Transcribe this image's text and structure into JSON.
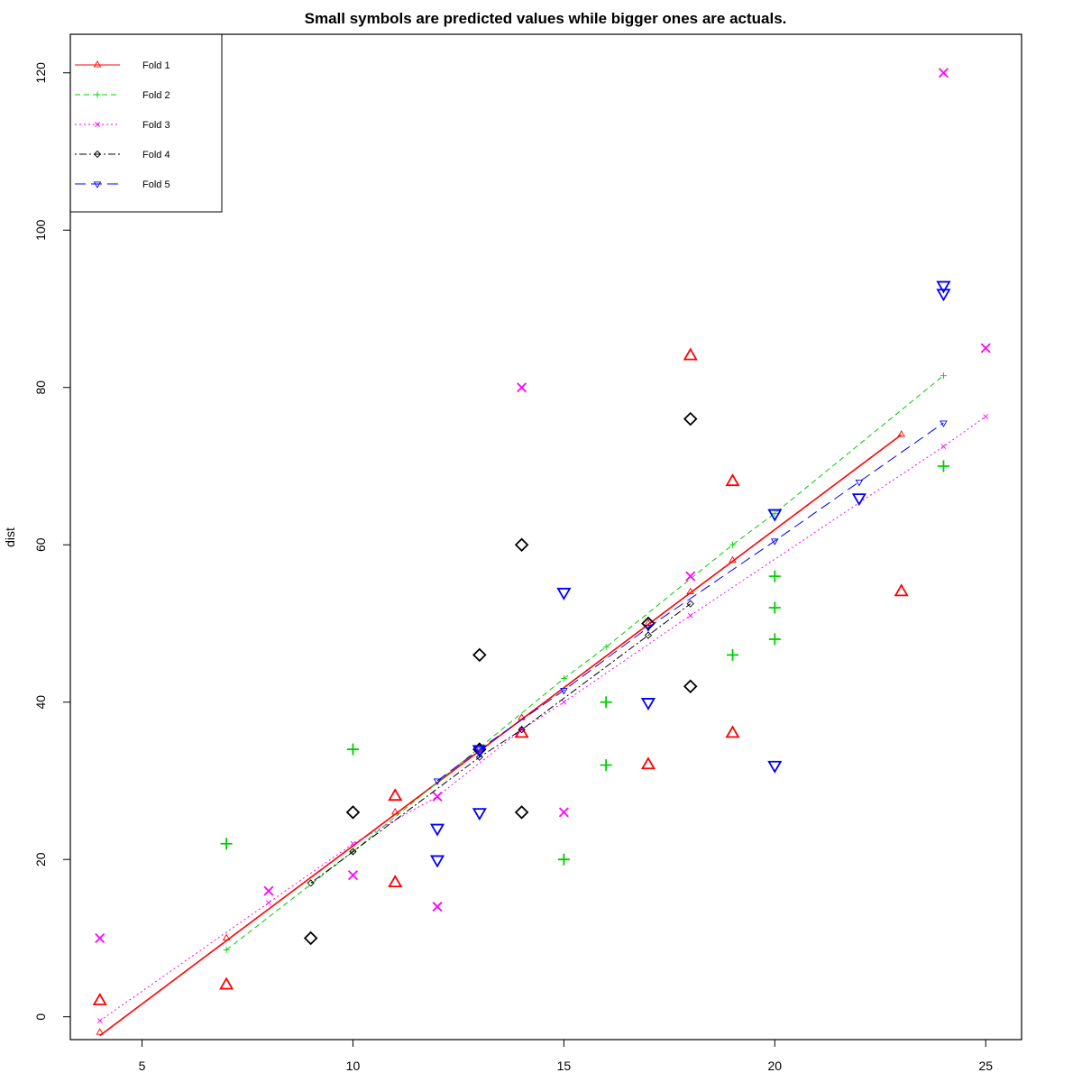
{
  "chart_data": {
    "type": "scatter",
    "title": "Small symbols are predicted values while bigger ones are actuals.",
    "xlabel": "",
    "ylabel": "dist",
    "xlim": [
      3.3,
      25.85
    ],
    "ylim": [
      -2.9,
      124.9
    ],
    "xticks": [
      5,
      10,
      15,
      20,
      25
    ],
    "yticks": [
      0,
      20,
      40,
      60,
      80,
      100,
      120
    ],
    "grid": false,
    "legend_position": "top-left",
    "series": [
      {
        "name": "Fold 1",
        "color": "#ff0000",
        "marker": "triangle",
        "line_style": "solid",
        "actual": [
          [
            4,
            2
          ],
          [
            7,
            4
          ],
          [
            11,
            17
          ],
          [
            11,
            28
          ],
          [
            14,
            36
          ],
          [
            17,
            32
          ],
          [
            18,
            84
          ],
          [
            19,
            36
          ],
          [
            19,
            68
          ],
          [
            23,
            54
          ]
        ],
        "predicted": [
          [
            4,
            -2
          ],
          [
            7,
            10
          ],
          [
            11,
            26
          ],
          [
            14,
            38
          ],
          [
            17,
            50
          ],
          [
            18,
            54
          ],
          [
            19,
            58
          ],
          [
            23,
            74
          ]
        ],
        "fit_line": [
          [
            4,
            -2.4
          ],
          [
            23,
            74
          ]
        ]
      },
      {
        "name": "Fold 2",
        "color": "#00cd00",
        "marker": "plus",
        "line_style": "dashed",
        "actual": [
          [
            7,
            22
          ],
          [
            10,
            34
          ],
          [
            15,
            20
          ],
          [
            16,
            32
          ],
          [
            16,
            40
          ],
          [
            19,
            46
          ],
          [
            20,
            48
          ],
          [
            20,
            52
          ],
          [
            20,
            56
          ],
          [
            24,
            70
          ]
        ],
        "predicted": [
          [
            7,
            8.5
          ],
          [
            10,
            21
          ],
          [
            15,
            43
          ],
          [
            16,
            47
          ],
          [
            19,
            60
          ],
          [
            20,
            64
          ],
          [
            24,
            81.5
          ]
        ]
      },
      {
        "name": "Fold 3",
        "color": "#ff00ff",
        "marker": "cross",
        "line_style": "dotted",
        "actual": [
          [
            4,
            10
          ],
          [
            8,
            16
          ],
          [
            10,
            18
          ],
          [
            12,
            14
          ],
          [
            12,
            28
          ],
          [
            14,
            80
          ],
          [
            15,
            26
          ],
          [
            18,
            56
          ],
          [
            24,
            120
          ],
          [
            25,
            85
          ]
        ],
        "predicted": [
          [
            4,
            -0.5
          ],
          [
            8,
            14.5
          ],
          [
            10,
            22
          ],
          [
            12,
            28
          ],
          [
            14,
            36.5
          ],
          [
            15,
            40
          ],
          [
            18,
            51
          ],
          [
            24,
            72.5
          ],
          [
            25,
            76.3
          ]
        ]
      },
      {
        "name": "Fold 4",
        "color": "#000000",
        "marker": "diamond",
        "line_style": "dotdash",
        "actual": [
          [
            9,
            10
          ],
          [
            10,
            26
          ],
          [
            13,
            34
          ],
          [
            13,
            46
          ],
          [
            14,
            26
          ],
          [
            14,
            60
          ],
          [
            17,
            50
          ],
          [
            18,
            42
          ],
          [
            18,
            76
          ]
        ],
        "predicted": [
          [
            9,
            17
          ],
          [
            10,
            21
          ],
          [
            13,
            33
          ],
          [
            14,
            36.5
          ],
          [
            17,
            48.5
          ],
          [
            18,
            52.5
          ]
        ]
      },
      {
        "name": "Fold 5",
        "color": "#0000ff",
        "marker": "triangle-down",
        "line_style": "longdash",
        "actual": [
          [
            12,
            20
          ],
          [
            12,
            24
          ],
          [
            13,
            26
          ],
          [
            13,
            34
          ],
          [
            15,
            54
          ],
          [
            17,
            40
          ],
          [
            20,
            32
          ],
          [
            20,
            64
          ],
          [
            22,
            66
          ],
          [
            24,
            92
          ],
          [
            24,
            93
          ]
        ],
        "predicted": [
          [
            12,
            30
          ],
          [
            13,
            34
          ],
          [
            15,
            41.5
          ],
          [
            17,
            49.5
          ],
          [
            20,
            60.5
          ],
          [
            22,
            68
          ],
          [
            24,
            75.5
          ]
        ]
      }
    ]
  }
}
